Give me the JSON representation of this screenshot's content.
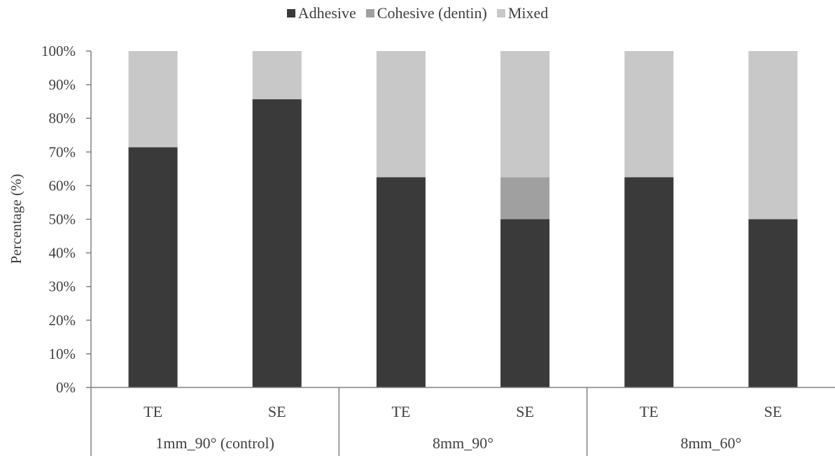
{
  "chart_data": {
    "type": "bar",
    "stacked": true,
    "percent": true,
    "categories": [
      "TE",
      "SE",
      "TE",
      "SE",
      "TE",
      "SE"
    ],
    "groups": [
      {
        "label": "1mm_90° (control)",
        "categories": [
          "TE",
          "SE"
        ]
      },
      {
        "label": "8mm_90°",
        "categories": [
          "TE",
          "SE"
        ]
      },
      {
        "label": "8mm_60°",
        "categories": [
          "TE",
          "SE"
        ]
      }
    ],
    "series": [
      {
        "name": "Adhesive",
        "color": "#3a3a3a",
        "values": [
          71.4,
          85.7,
          62.5,
          50.0,
          62.5,
          50.0
        ]
      },
      {
        "name": "Cohesive (dentin)",
        "color": "#a0a0a0",
        "values": [
          0,
          0,
          0,
          12.5,
          0,
          0
        ]
      },
      {
        "name": "Mixed",
        "color": "#c8c8c8",
        "values": [
          28.6,
          14.3,
          37.5,
          37.5,
          37.5,
          50.0
        ]
      }
    ],
    "ylabel": "Percentage (%)",
    "yticks": [
      "0%",
      "10%",
      "20%",
      "30%",
      "40%",
      "50%",
      "60%",
      "70%",
      "80%",
      "90%",
      "100%"
    ],
    "ylim": [
      0,
      100
    ],
    "grid": false,
    "legend_position": "top"
  }
}
